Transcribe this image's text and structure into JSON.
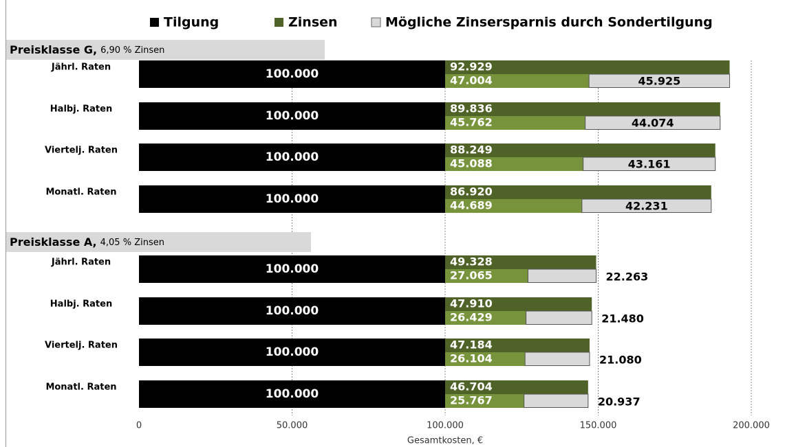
{
  "chart_data": {
    "type": "bar",
    "orientation": "horizontal",
    "stacked": true,
    "xlabel": "Gesamtkosten, €",
    "xlim": [
      0,
      200000
    ],
    "xticks": [
      0,
      {
        "value": 50000,
        "label": "50.000"
      },
      {
        "value": 100000,
        "label": "100.000"
      },
      {
        "value": 150000,
        "label": "150.000"
      },
      {
        "value": 200000,
        "label": "200.000"
      }
    ],
    "grid": true,
    "legend": "top",
    "series": [
      {
        "name": "Tilgung",
        "color": "#000000"
      },
      {
        "name": "Zinsen",
        "color": "#4f6228"
      },
      {
        "color": "#77933c"
      },
      {
        "name": "Mögliche Zinsersparnis durch Sondertilgung",
        "color": "#d9d9d9"
      }
    ],
    "panels": [
      {
        "title": "Preisklasse G,",
        "subtitle": "6,90 % Zinsen",
        "categories": [
          "Jährl. Raten",
          "Halbj. Raten",
          "Viertelj. Raten",
          "Monatl. Raten"
        ],
        "values": [
          [
            100000,
            100000,
            100000,
            100000
          ],
          [
            92929,
            89836,
            88249,
            86920
          ],
          [
            47004,
            45762,
            45088,
            44689
          ],
          [
            45925,
            44074,
            43161,
            42231
          ]
        ],
        "value_labels": [
          [
            "100.000",
            "100.000",
            "100.000",
            "100.000"
          ],
          [
            "92.929",
            "89.836",
            "88.249",
            "86.920"
          ],
          [
            "47.004",
            "45.762",
            "45.088",
            "44.689"
          ],
          [
            "45.925",
            "44.074",
            "43.161",
            "42.231"
          ]
        ]
      },
      {
        "title": "Preisklasse A,",
        "subtitle": "4,05 % Zinsen",
        "categories": [
          "Jährl. Raten",
          "Halbj. Raten",
          "Viertelj. Raten",
          "Monatl. Raten"
        ],
        "values": [
          [
            100000,
            100000,
            100000,
            100000
          ],
          [
            49328,
            47910,
            47184,
            46704
          ],
          [
            27065,
            26429,
            26104,
            25767
          ],
          [
            22263,
            21480,
            21080,
            20937
          ]
        ],
        "value_labels": [
          [
            "100.000",
            "100.000",
            "100.000",
            "100.000"
          ],
          [
            "49.328",
            "47.910",
            "47.184",
            "46.704"
          ],
          [
            "27.065",
            "26.429",
            "26.104",
            "25.767"
          ],
          [
            "22.263",
            "21.480",
            "21.080",
            "20.937"
          ]
        ]
      }
    ]
  }
}
